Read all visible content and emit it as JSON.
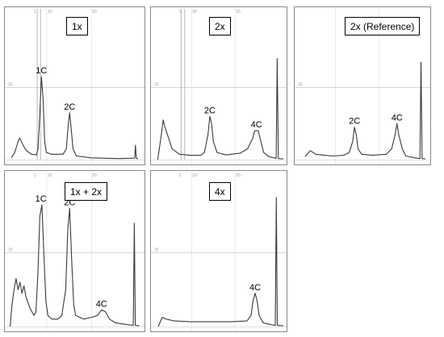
{
  "chart_data": [
    {
      "type": "line",
      "title": "1x",
      "x_ticks": [
        "1",
        "10",
        "20"
      ],
      "y_ticks": [
        "20"
      ],
      "ylim": [
        0,
        40
      ],
      "trace": [
        [
          2,
          0.5
        ],
        [
          4,
          2
        ],
        [
          6,
          5
        ],
        [
          7,
          6
        ],
        [
          9,
          4
        ],
        [
          11,
          2.5
        ],
        [
          14,
          1.5
        ],
        [
          17,
          1.3
        ],
        [
          18,
          3
        ],
        [
          19,
          12
        ],
        [
          20,
          23
        ],
        [
          21,
          17
        ],
        [
          22,
          5
        ],
        [
          23,
          2
        ],
        [
          26,
          1.5
        ],
        [
          30,
          1.5
        ],
        [
          33,
          1.5
        ],
        [
          35,
          3
        ],
        [
          36,
          9
        ],
        [
          37,
          13
        ],
        [
          38,
          8
        ],
        [
          39,
          3
        ],
        [
          41,
          1
        ],
        [
          50,
          0.5
        ],
        [
          66,
          0.3
        ],
        [
          76,
          0.4
        ],
        [
          76.5,
          4
        ],
        [
          77,
          0.4
        ],
        [
          78,
          0.2
        ]
      ],
      "peaks": [
        {
          "label": "1C",
          "x": 20,
          "y": 23
        },
        {
          "label": "2C",
          "x": 37,
          "y": 13
        }
      ],
      "markers": [
        17.5,
        19.5
      ]
    },
    {
      "type": "line",
      "title": "2x",
      "x_ticks": [
        "1",
        "10",
        "20"
      ],
      "y_ticks": [
        "20"
      ],
      "ylim": [
        0,
        40
      ],
      "trace": [
        [
          2,
          0
        ],
        [
          4,
          7
        ],
        [
          5,
          11
        ],
        [
          6,
          9
        ],
        [
          8,
          6
        ],
        [
          10,
          3
        ],
        [
          14,
          1.5
        ],
        [
          20,
          1.2
        ],
        [
          26,
          1.2
        ],
        [
          28,
          2
        ],
        [
          30,
          7
        ],
        [
          31,
          12
        ],
        [
          32,
          10
        ],
        [
          33,
          5
        ],
        [
          35,
          2
        ],
        [
          40,
          1.3
        ],
        [
          48,
          1.8
        ],
        [
          52,
          3
        ],
        [
          55,
          6
        ],
        [
          56,
          8
        ],
        [
          58,
          8
        ],
        [
          59,
          6
        ],
        [
          61,
          2
        ],
        [
          64,
          0.8
        ],
        [
          67,
          0.5
        ],
        [
          68,
          0.3
        ],
        [
          68.6,
          28
        ],
        [
          69.2,
          0.3
        ],
        [
          72,
          0.2
        ]
      ],
      "peaks": [
        {
          "label": "2C",
          "x": 31,
          "y": 12
        },
        {
          "label": "4C",
          "x": 57,
          "y": 8
        }
      ],
      "markers": [
        15,
        17
      ]
    },
    {
      "type": "line",
      "title": "2x (Reference)",
      "x_ticks": [],
      "y_ticks": [
        "20"
      ],
      "ylim": [
        0,
        40
      ],
      "trace": [
        [
          4,
          0.8
        ],
        [
          7,
          2.5
        ],
        [
          8,
          2.2
        ],
        [
          10,
          1.5
        ],
        [
          15,
          1.2
        ],
        [
          20,
          1
        ],
        [
          26,
          1.2
        ],
        [
          29,
          2
        ],
        [
          31,
          5
        ],
        [
          32,
          9
        ],
        [
          33,
          7
        ],
        [
          34,
          3
        ],
        [
          36,
          1.5
        ],
        [
          42,
          1.2
        ],
        [
          50,
          1.5
        ],
        [
          53,
          3
        ],
        [
          55,
          7
        ],
        [
          56,
          10
        ],
        [
          57,
          7
        ],
        [
          59,
          3
        ],
        [
          61,
          1
        ],
        [
          66,
          0.5
        ],
        [
          69,
          0.3
        ],
        [
          69.6,
          27
        ],
        [
          70.2,
          0.3
        ],
        [
          72,
          0.2
        ]
      ],
      "peaks": [
        {
          "label": "2C",
          "x": 32,
          "y": 9
        },
        {
          "label": "4C",
          "x": 56,
          "y": 10
        }
      ],
      "markers": []
    },
    {
      "type": "line",
      "title": "1x + 2x",
      "x_ticks": [
        "1",
        "10",
        "20"
      ],
      "y_ticks": [
        "20"
      ],
      "ylim": [
        0,
        40
      ],
      "trace": [
        [
          1,
          0
        ],
        [
          2,
          6
        ],
        [
          3,
          10
        ],
        [
          4,
          13
        ],
        [
          5,
          10
        ],
        [
          6,
          12
        ],
        [
          7,
          9
        ],
        [
          8,
          11
        ],
        [
          9,
          8
        ],
        [
          11,
          5
        ],
        [
          13,
          3
        ],
        [
          14,
          4
        ],
        [
          15,
          14
        ],
        [
          16,
          30
        ],
        [
          17,
          33
        ],
        [
          18,
          20
        ],
        [
          19,
          7
        ],
        [
          20,
          3
        ],
        [
          22,
          2
        ],
        [
          25,
          2
        ],
        [
          27,
          3
        ],
        [
          29,
          10
        ],
        [
          30,
          26
        ],
        [
          31,
          32
        ],
        [
          32,
          18
        ],
        [
          33,
          6
        ],
        [
          34,
          3
        ],
        [
          38,
          2
        ],
        [
          42,
          2.5
        ],
        [
          45,
          3
        ],
        [
          47,
          4.5
        ],
        [
          49,
          4
        ],
        [
          51,
          2
        ],
        [
          54,
          1
        ],
        [
          60,
          0.5
        ],
        [
          63,
          0.3
        ],
        [
          63.5,
          28
        ],
        [
          64,
          0.3
        ],
        [
          66,
          0.2
        ]
      ],
      "peaks": [
        {
          "label": "1C",
          "x": 16.5,
          "y": 33
        },
        {
          "label": "2C",
          "x": 31,
          "y": 32
        },
        {
          "label": "4C",
          "x": 47,
          "y": 4.5
        }
      ],
      "markers": []
    },
    {
      "type": "line",
      "title": "4x",
      "x_ticks": [
        "1",
        "10",
        "20"
      ],
      "y_ticks": [
        "20"
      ],
      "ylim": [
        0,
        40
      ],
      "trace": [
        [
          2,
          0
        ],
        [
          4,
          2.5
        ],
        [
          6,
          2
        ],
        [
          10,
          1.5
        ],
        [
          18,
          1.3
        ],
        [
          28,
          1.3
        ],
        [
          38,
          1.3
        ],
        [
          46,
          1.5
        ],
        [
          48,
          3
        ],
        [
          49,
          7
        ],
        [
          50,
          9
        ],
        [
          51,
          7
        ],
        [
          52,
          3
        ],
        [
          54,
          1
        ],
        [
          58,
          0.5
        ],
        [
          60,
          0.3
        ],
        [
          60.5,
          35
        ],
        [
          61,
          0.3
        ],
        [
          64,
          0.2
        ]
      ],
      "peaks": [
        {
          "label": "4C",
          "x": 50,
          "y": 9
        }
      ],
      "markers": []
    }
  ]
}
